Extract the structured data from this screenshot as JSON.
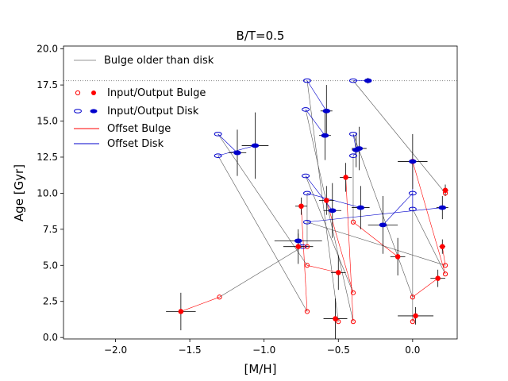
{
  "chart_data": {
    "type": "scatter",
    "title": "B/T=0.5",
    "xlabel": "[M/H]",
    "ylabel": "Age [Gyr]",
    "xlim": [
      -2.35,
      0.3
    ],
    "ylim": [
      -0.1,
      20.2
    ],
    "xticks": [
      -2.0,
      -1.5,
      -1.0,
      -0.5,
      0.0
    ],
    "yticks": [
      0.0,
      2.5,
      5.0,
      7.5,
      10.0,
      12.5,
      15.0,
      17.5,
      20.0
    ],
    "xtick_labels": [
      "−2.0",
      "−1.5",
      "−1.0",
      "−0.5",
      "0.0"
    ],
    "ytick_labels": [
      "0.0",
      "2.5",
      "5.0",
      "7.5",
      "10.0",
      "12.5",
      "15.0",
      "17.5",
      "20.0"
    ],
    "reference_line_age": 17.8,
    "legend": {
      "placement": "upper-left",
      "entries": [
        "Bulge older than disk",
        "Input/Output Bulge",
        "Input/Output Disk",
        "Offset Bulge",
        "Offset Disk"
      ]
    },
    "colors": {
      "bulge": "#ff0000",
      "disk": "#0000cc",
      "gray": "#555555",
      "legend_gray": "#aaaaaa",
      "error": "#000000"
    },
    "galaxies": [
      {
        "bi": [
          -1.3,
          2.8
        ],
        "bo": [
          -1.56,
          1.8,
          0.1,
          1.3
        ],
        "di": [
          -0.74,
          6.3
        ],
        "do": [
          -0.77,
          6.7,
          0.16,
          0.5
        ]
      },
      {
        "bi": [
          -0.71,
          1.8
        ],
        "bo": [
          -0.75,
          9.1,
          0.04,
          0.6
        ],
        "di": [
          -1.31,
          12.6
        ],
        "do": [
          -1.06,
          13.3,
          0.09,
          2.3
        ]
      },
      {
        "bi": [
          -0.71,
          5.0
        ],
        "bo": [
          -0.5,
          4.5,
          0.05,
          1.2
        ],
        "di": [
          -1.31,
          14.1
        ],
        "do": [
          -1.18,
          12.8,
          0.06,
          1.6
        ]
      },
      {
        "bi": [
          -0.5,
          1.1
        ],
        "bo": [
          -0.52,
          1.3,
          0.08,
          1.4
        ],
        "di": [
          -0.71,
          17.8
        ],
        "do": [
          -0.58,
          15.7,
          0.04,
          1.8
        ]
      },
      {
        "bi": [
          -0.4,
          1.1
        ],
        "bo": [
          -0.45,
          11.1,
          0.04,
          1.0
        ],
        "di": [
          -0.72,
          15.8
        ],
        "do": [
          -0.59,
          14.0,
          0.04,
          1.7
        ]
      },
      {
        "bi": [
          -0.4,
          3.1
        ],
        "bo": [
          -0.58,
          9.5,
          0.05,
          1.0
        ],
        "di": [
          -0.72,
          11.2
        ],
        "do": [
          -0.54,
          8.8,
          0.06,
          1.9
        ]
      },
      {
        "bi": [
          -0.4,
          8.0
        ],
        "bo": [
          -0.1,
          5.6,
          0.05,
          1.3
        ],
        "di": [
          -0.4,
          12.6
        ],
        "do": [
          -0.36,
          13.1,
          0.05,
          1.5
        ]
      },
      {
        "bi": [
          -0.71,
          6.3
        ],
        "bo": [
          -0.77,
          6.3,
          0.1,
          1.2
        ],
        "di": [
          -0.71,
          10.0
        ],
        "do": [
          -0.35,
          9.0,
          0.06,
          1.5
        ]
      },
      {
        "bi": [
          0.0,
          1.1
        ],
        "bo": [
          0.02,
          1.5,
          0.12,
          0.6
        ],
        "di": [
          0.0,
          10.0
        ],
        "do": [
          -0.2,
          7.8,
          0.1,
          2.0
        ]
      },
      {
        "bi": [
          0.0,
          2.8
        ],
        "bo": [
          0.17,
          4.1,
          0.05,
          0.6
        ],
        "di": [
          -0.4,
          14.1
        ],
        "do": [
          -0.38,
          13.0,
          0.03,
          1.2
        ]
      },
      {
        "bi": [
          0.22,
          10.0
        ],
        "bo": [
          0.22,
          10.2,
          0.02,
          0.4
        ],
        "di": [
          -0.4,
          17.8
        ],
        "do": [
          -0.3,
          17.8,
          0.02,
          0.2
        ]
      },
      {
        "bi": [
          0.22,
          5.0
        ],
        "bo": [
          0.2,
          6.3,
          0.02,
          0.5
        ],
        "di": [
          -0.71,
          8.0
        ],
        "do": [
          0.2,
          9.0,
          0.04,
          0.8
        ]
      },
      {
        "bi": [
          0.22,
          4.4
        ],
        "bo": [
          0.0,
          12.2,
          0.1,
          1.9
        ],
        "di": [
          0.0,
          8.9
        ],
        "do": [
          0.0,
          12.2,
          0.0,
          0.0
        ]
      }
    ]
  }
}
